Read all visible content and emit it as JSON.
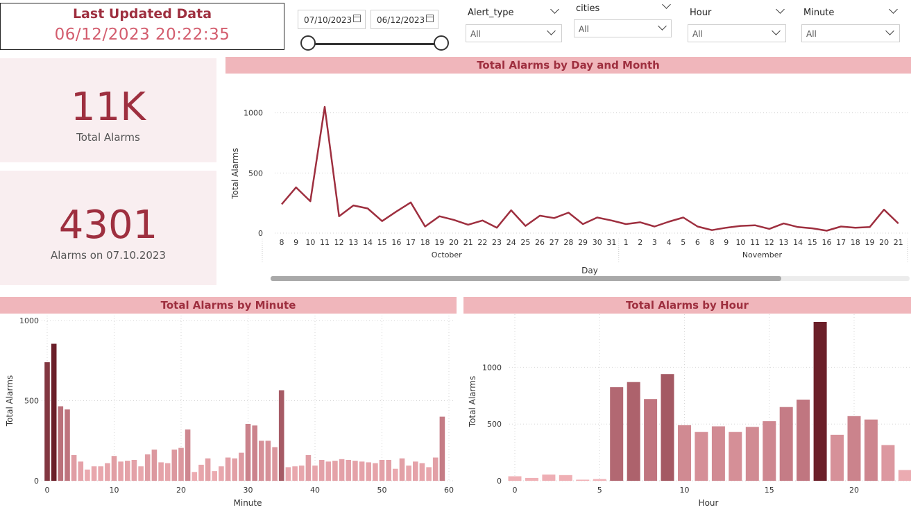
{
  "header": {
    "title": "Last Updated Data",
    "timestamp": "06/12/2023 20:22:35"
  },
  "filters": {
    "date_start": "07/10/2023",
    "date_end": "06/12/2023",
    "alert_type": {
      "label": "Alert_type",
      "value": "All"
    },
    "cities": {
      "label": "cities",
      "value": "All"
    },
    "hour": {
      "label": "Hour",
      "value": "All"
    },
    "minute": {
      "label": "Minute",
      "value": "All"
    }
  },
  "cards": [
    {
      "value": "11K",
      "label": "Total Alarms"
    },
    {
      "value": "4301",
      "label": "Alarms on 07.10.2023"
    }
  ],
  "colors": {
    "accent": "#9e2f3f",
    "title_band": "#f0b6bb",
    "card_bg": "#f9eef0"
  },
  "chart_data": [
    {
      "type": "line",
      "title": "Total Alarms by Day and Month",
      "xlabel": "Day",
      "ylabel": "Total Alarms",
      "ylim": [
        0,
        1050
      ],
      "yticks": [
        0,
        500,
        1000
      ],
      "groups": [
        {
          "name": "October",
          "days": [
            "8",
            "9",
            "10",
            "11",
            "12",
            "13",
            "14",
            "15",
            "16",
            "17",
            "18",
            "19",
            "20",
            "21",
            "22",
            "23",
            "24",
            "25",
            "26",
            "27",
            "28",
            "29",
            "30",
            "31"
          ]
        },
        {
          "name": "November",
          "days": [
            "1",
            "2",
            "3",
            "4",
            "5",
            "6",
            "8",
            "9",
            "10",
            "11",
            "12",
            "13",
            "14",
            "15",
            "16",
            "17",
            "18",
            "19",
            "20",
            "21"
          ]
        }
      ],
      "values": [
        240,
        380,
        265,
        1050,
        140,
        230,
        205,
        100,
        180,
        255,
        55,
        140,
        110,
        70,
        105,
        45,
        190,
        60,
        145,
        125,
        170,
        75,
        130,
        105,
        75,
        90,
        55,
        95,
        130,
        55,
        25,
        45,
        60,
        65,
        35,
        80,
        50,
        40,
        20,
        55,
        45,
        50,
        195,
        80
      ],
      "color": "#9e2f3f",
      "grid": true
    },
    {
      "type": "bar",
      "title": "Total Alarms by Minute",
      "xlabel": "Minute",
      "ylabel": "Total Alarms",
      "ylim": [
        0,
        1000
      ],
      "yticks": [
        0,
        500,
        1000
      ],
      "xticks": [
        0,
        10,
        20,
        30,
        40,
        50,
        60
      ],
      "x": [
        0,
        1,
        2,
        3,
        4,
        5,
        6,
        7,
        8,
        9,
        10,
        11,
        12,
        13,
        14,
        15,
        16,
        17,
        18,
        19,
        20,
        21,
        22,
        23,
        24,
        25,
        26,
        27,
        28,
        29,
        30,
        31,
        32,
        33,
        34,
        35,
        36,
        37,
        38,
        39,
        40,
        41,
        42,
        43,
        44,
        45,
        46,
        47,
        48,
        49,
        50,
        51,
        52,
        53,
        54,
        55,
        56,
        57,
        58,
        59
      ],
      "values": [
        740,
        855,
        465,
        445,
        160,
        120,
        70,
        90,
        90,
        110,
        155,
        120,
        125,
        130,
        90,
        165,
        195,
        115,
        110,
        195,
        205,
        320,
        55,
        100,
        140,
        60,
        90,
        145,
        140,
        175,
        355,
        345,
        250,
        250,
        210,
        565,
        85,
        90,
        95,
        160,
        95,
        130,
        120,
        125,
        135,
        130,
        125,
        120,
        115,
        110,
        130,
        130,
        75,
        140,
        95,
        120,
        110,
        85,
        145,
        400
      ],
      "grid": true
    },
    {
      "type": "bar",
      "title": "Total Alarms by Hour",
      "xlabel": "Hour",
      "ylabel": "Total Alarms",
      "ylim": [
        0,
        1400
      ],
      "yticks": [
        0,
        500,
        1000
      ],
      "xticks": [
        0,
        5,
        10,
        15,
        20
      ],
      "x": [
        0,
        1,
        2,
        3,
        4,
        5,
        6,
        7,
        8,
        9,
        10,
        11,
        12,
        13,
        14,
        15,
        16,
        17,
        18,
        19,
        20,
        21,
        22,
        23
      ],
      "values": [
        40,
        25,
        55,
        50,
        10,
        15,
        825,
        870,
        720,
        940,
        490,
        430,
        480,
        430,
        475,
        525,
        650,
        715,
        1400,
        405,
        570,
        540,
        315,
        95
      ],
      "grid": true
    }
  ]
}
